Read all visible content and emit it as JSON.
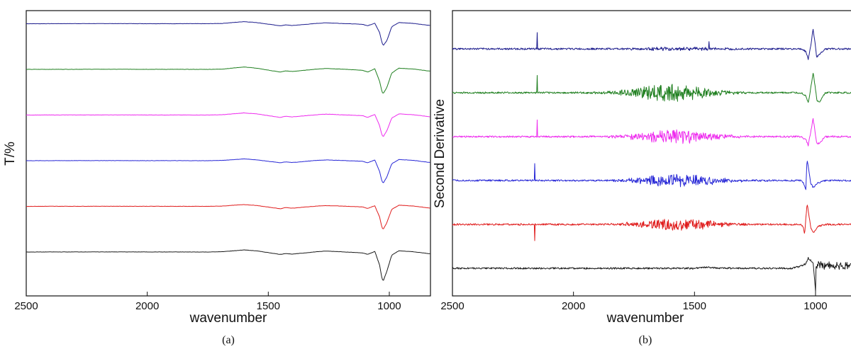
{
  "colors": {
    "navy": "#1b1b8c",
    "green": "#1f7f1f",
    "magenta": "#ee2aee",
    "blue": "#2727d6",
    "red": "#e01c1c",
    "black": "#1a1a1a"
  },
  "chart_data": [
    {
      "type": "line",
      "caption": "(a)",
      "xlabel": "wavenumber",
      "ylabel": "T/%",
      "xlim": [
        2500,
        830
      ],
      "x_reversed": true,
      "xticks": [
        2500,
        2000,
        1500,
        1000
      ],
      "xtick_labels": [
        "2500",
        "2000",
        "1500",
        "1000"
      ],
      "yticks_shown": false,
      "grid": false,
      "legend": "none",
      "series": [
        {
          "color": "#1b1b8c",
          "offset": 6,
          "x": [
            2500,
            2200,
            1750,
            1690,
            1600,
            1550,
            1450,
            1430,
            1400,
            1300,
            1260,
            1200,
            1110,
            1090,
            1060,
            1040,
            1030,
            1025,
            1010,
            990,
            960,
            900,
            830
          ],
          "y": [
            0,
            0.02,
            0,
            0.05,
            0.35,
            0.2,
            -0.35,
            -0.2,
            -0.3,
            0.05,
            0.15,
            0.05,
            -0.1,
            -0.35,
            0.1,
            -1.5,
            -3.2,
            -3.6,
            -2.8,
            -0.5,
            0.2,
            0.05,
            -0.3
          ]
        },
        {
          "color": "#1f7f1f",
          "offset": 5,
          "x": [
            2500,
            2200,
            1750,
            1690,
            1600,
            1550,
            1450,
            1430,
            1400,
            1300,
            1260,
            1200,
            1110,
            1090,
            1060,
            1040,
            1030,
            1025,
            1010,
            990,
            960,
            900,
            830
          ],
          "y": [
            0,
            0.02,
            0,
            0.05,
            0.4,
            0.2,
            -0.45,
            -0.25,
            -0.35,
            0.05,
            0.15,
            0.05,
            -0.15,
            -0.45,
            0.1,
            -2.0,
            -3.8,
            -4.0,
            -3.0,
            -0.6,
            0.2,
            0.05,
            -0.3
          ]
        },
        {
          "color": "#ee2aee",
          "offset": 4,
          "x": [
            2500,
            2200,
            1750,
            1690,
            1600,
            1550,
            1450,
            1430,
            1400,
            1300,
            1260,
            1200,
            1110,
            1090,
            1060,
            1040,
            1030,
            1025,
            1010,
            990,
            960,
            900,
            830
          ],
          "y": [
            0,
            0.02,
            0,
            0.05,
            0.35,
            0.2,
            -0.4,
            -0.2,
            -0.3,
            0.05,
            0.15,
            0.05,
            -0.1,
            -0.4,
            0.1,
            -1.8,
            -3.4,
            -3.6,
            -2.6,
            -0.5,
            0.2,
            0.05,
            -0.3
          ]
        },
        {
          "color": "#2727d6",
          "offset": 3,
          "x": [
            2500,
            2200,
            1750,
            1690,
            1600,
            1550,
            1450,
            1430,
            1400,
            1300,
            1260,
            1200,
            1110,
            1090,
            1060,
            1040,
            1030,
            1025,
            1010,
            990,
            960,
            900,
            830
          ],
          "y": [
            0,
            0.02,
            0,
            0.05,
            0.3,
            0.15,
            -0.35,
            -0.2,
            -0.3,
            0.05,
            0.12,
            0.05,
            -0.1,
            -0.35,
            0.1,
            -1.8,
            -3.5,
            -3.7,
            -2.7,
            -0.5,
            0.2,
            0.05,
            -0.3
          ]
        },
        {
          "color": "#e01c1c",
          "offset": 2,
          "x": [
            2500,
            2200,
            1750,
            1690,
            1600,
            1550,
            1450,
            1430,
            1400,
            1300,
            1260,
            1200,
            1110,
            1090,
            1060,
            1040,
            1030,
            1025,
            1010,
            990,
            960,
            900,
            830
          ],
          "y": [
            0,
            0.02,
            0,
            0.05,
            0.3,
            0.15,
            -0.4,
            -0.2,
            -0.3,
            0.05,
            0.12,
            0.05,
            -0.1,
            -0.35,
            0.1,
            -1.8,
            -3.6,
            -3.8,
            -2.7,
            -0.5,
            0.2,
            0.05,
            -0.3
          ]
        },
        {
          "color": "#1a1a1a",
          "offset": 1,
          "x": [
            2500,
            2200,
            1750,
            1690,
            1600,
            1550,
            1450,
            1430,
            1400,
            1300,
            1260,
            1200,
            1110,
            1090,
            1060,
            1040,
            1030,
            1025,
            1010,
            990,
            960,
            900,
            830
          ],
          "y": [
            0,
            0.02,
            0,
            0.05,
            0.35,
            0.2,
            -0.4,
            -0.25,
            -0.35,
            0.05,
            0.15,
            0.05,
            -0.15,
            -0.4,
            0.1,
            -2.2,
            -4.5,
            -4.8,
            -3.2,
            -0.5,
            0.2,
            0.05,
            -0.3
          ]
        }
      ]
    },
    {
      "type": "line",
      "caption": "(b)",
      "xlabel": "wavenumber",
      "ylabel": "Second Derivative",
      "xlim": [
        2500,
        830
      ],
      "x_reversed": true,
      "xticks": [
        2500,
        2000,
        1500,
        1000
      ],
      "xtick_labels": [
        "2500",
        "2000",
        "1500",
        "1000"
      ],
      "yticks_shown": false,
      "grid": false,
      "legend": "none",
      "series": [
        {
          "color": "#1b1b8c",
          "offset": 6,
          "noise_center": 1550,
          "noise_width": 200,
          "noise_amp": 0.25,
          "spikes": [
            {
              "x": 2150,
              "y": 1.2
            },
            {
              "x": 1440,
              "y": 0.6
            }
          ],
          "x": [
            1060,
            1040,
            1030,
            1020,
            1010,
            1005,
            995,
            985,
            960
          ],
          "y": [
            0,
            -0.5,
            -1.8,
            0.5,
            3.5,
            2.0,
            -1.5,
            -1.0,
            0
          ]
        },
        {
          "color": "#1f7f1f",
          "offset": 5,
          "noise_center": 1600,
          "noise_width": 180,
          "noise_amp": 1.6,
          "spikes": [
            {
              "x": 2150,
              "y": 1.2
            }
          ],
          "x": [
            1060,
            1040,
            1030,
            1020,
            1010,
            1005,
            995,
            985,
            960
          ],
          "y": [
            0,
            -0.5,
            -1.8,
            0.8,
            3.5,
            2.2,
            -1.2,
            -1.8,
            0
          ]
        },
        {
          "color": "#ee2aee",
          "offset": 4,
          "noise_center": 1580,
          "noise_width": 180,
          "noise_amp": 1.2,
          "spikes": [
            {
              "x": 2150,
              "y": 1.2
            }
          ],
          "x": [
            1060,
            1040,
            1030,
            1020,
            1010,
            1005,
            995,
            985,
            960
          ],
          "y": [
            0,
            -0.5,
            -1.5,
            0.8,
            3.2,
            1.8,
            -1.2,
            -1.2,
            0
          ]
        },
        {
          "color": "#2727d6",
          "offset": 3,
          "noise_center": 1570,
          "noise_width": 180,
          "noise_amp": 1.1,
          "spikes": [
            {
              "x": 2160,
              "y": 1.2
            }
          ],
          "x": [
            1060,
            1050,
            1040,
            1035,
            1030,
            1020,
            1010,
            990,
            960
          ],
          "y": [
            0,
            -0.4,
            -1.5,
            3.8,
            2.5,
            -0.5,
            -1.2,
            -0.4,
            0
          ]
        },
        {
          "color": "#e01c1c",
          "offset": 2,
          "noise_center": 1570,
          "noise_width": 180,
          "noise_amp": 1.0,
          "spikes": [
            {
              "x": 2160,
              "y": -1.2
            }
          ],
          "x": [
            1060,
            1050,
            1045,
            1035,
            1030,
            1020,
            1010,
            990,
            960
          ],
          "y": [
            0,
            -0.5,
            -1.8,
            3.8,
            2.5,
            -0.5,
            -1.5,
            -0.4,
            0
          ]
        },
        {
          "color": "#1a1a1a",
          "offset": 1,
          "noise_center": 900,
          "noise_width": 80,
          "noise_amp": 0.2,
          "spikes": [],
          "x": [
            2500,
            1500,
            1450,
            1400,
            1100,
            1060,
            1040,
            1030,
            1010,
            1000,
            998,
            990,
            970,
            900,
            830
          ],
          "y": [
            0,
            0,
            0.2,
            0,
            0,
            0.4,
            0.8,
            1.8,
            1.0,
            -4.0,
            0.3,
            0.6,
            0.5,
            0.5,
            0.5
          ]
        }
      ]
    }
  ]
}
